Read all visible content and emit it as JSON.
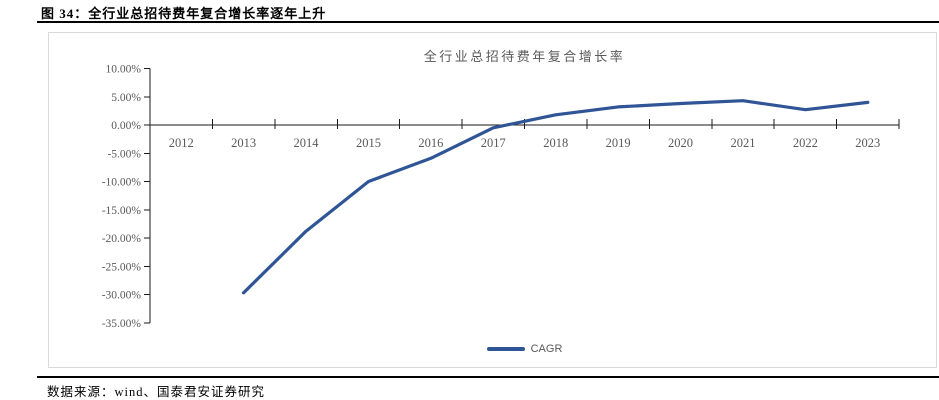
{
  "figure": {
    "title": "图 34：全行业总招待费年复合增长率逐年上升",
    "source_note": "数据来源：wind、国泰君安证券研究"
  },
  "chart": {
    "title": "全行业总招待费年复合增长率",
    "legend_label": "CAGR"
  },
  "chart_data": {
    "type": "line",
    "title": "全行业总招待费年复合增长率",
    "categories": [
      "2012",
      "2013",
      "2014",
      "2015",
      "2016",
      "2017",
      "2018",
      "2019",
      "2020",
      "2021",
      "2022",
      "2023"
    ],
    "series": [
      {
        "name": "CAGR",
        "color": "#2F5597",
        "values": [
          null,
          -29.7,
          -18.8,
          -10.0,
          -5.9,
          -0.5,
          1.8,
          3.2,
          3.8,
          4.3,
          2.7,
          4.0
        ]
      }
    ],
    "ylim": [
      -35,
      10
    ],
    "ytick_step": 5,
    "ytick_labels": [
      "10.00%",
      "5.00%",
      "0.00%",
      "-5.00%",
      "-10.00%",
      "-15.00%",
      "-20.00%",
      "-25.00%",
      "-30.00%",
      "-35.00%"
    ],
    "xlabel": "",
    "ylabel": "",
    "grid": false,
    "legend_position": "bottom",
    "colors": {
      "line": "#2F5597",
      "axis": "#1a1a1a",
      "tick_label": "#595959",
      "frame_border": "#d9d9d9"
    }
  }
}
